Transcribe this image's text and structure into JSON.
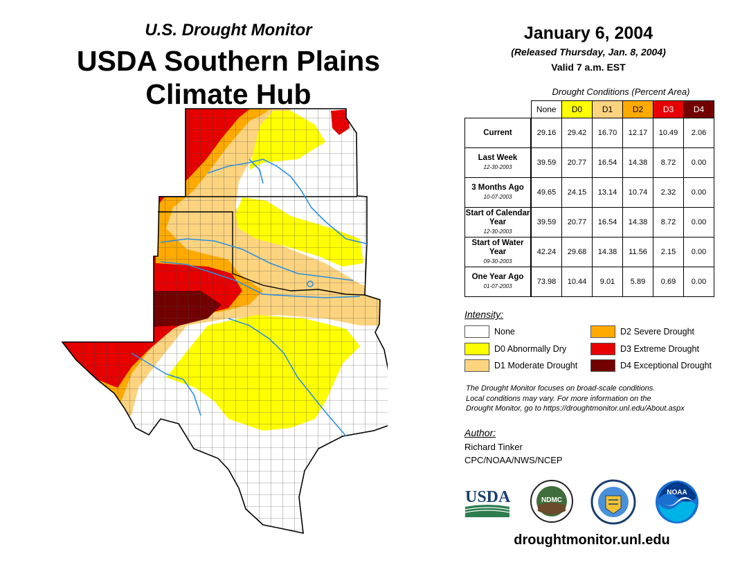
{
  "title": {
    "monitor": "U.S. Drought Monitor",
    "hub_line1": "USDA Southern Plains",
    "hub_line2": "Climate Hub"
  },
  "date": {
    "main": "January 6, 2004",
    "released": "(Released Thursday, Jan. 8, 2004)",
    "valid": "Valid 7 a.m. EST"
  },
  "table": {
    "caption": "Drought Conditions (Percent Area)",
    "columns": [
      "None",
      "D0",
      "D1",
      "D2",
      "D3",
      "D4"
    ],
    "column_colors": [
      "#ffffff",
      "#ffff00",
      "#fcd37f",
      "#ffaa00",
      "#e60000",
      "#730000"
    ],
    "rows": [
      {
        "label": "Current",
        "sub": "",
        "values": [
          "29.16",
          "29.42",
          "16.70",
          "12.17",
          "10.49",
          "2.06"
        ]
      },
      {
        "label": "Last Week",
        "sub": "12-30-2003",
        "values": [
          "39.59",
          "20.77",
          "16.54",
          "14.38",
          "8.72",
          "0.00"
        ]
      },
      {
        "label": "3 Months Ago",
        "sub": "10-07-2003",
        "values": [
          "49.65",
          "24.15",
          "13.14",
          "10.74",
          "2.32",
          "0.00"
        ]
      },
      {
        "label": "Start of Calendar Year",
        "sub": "12-30-2003",
        "values": [
          "39.59",
          "20.77",
          "16.54",
          "14.38",
          "8.72",
          "0.00"
        ]
      },
      {
        "label": "Start of Water Year",
        "sub": "09-30-2003",
        "values": [
          "42.24",
          "29.68",
          "14.38",
          "11.56",
          "2.15",
          "0.00"
        ]
      },
      {
        "label": "One Year Ago",
        "sub": "01-07-2003",
        "values": [
          "73.98",
          "10.44",
          "9.01",
          "5.89",
          "0.69",
          "0.00"
        ]
      }
    ]
  },
  "legend": {
    "title": "Intensity:",
    "items": [
      {
        "label": "None",
        "color": "#ffffff"
      },
      {
        "label": "D0 Abnormally Dry",
        "color": "#ffff00"
      },
      {
        "label": "D1 Moderate Drought",
        "color": "#fcd37f"
      },
      {
        "label": "D2 Severe Drought",
        "color": "#ffaa00"
      },
      {
        "label": "D3 Extreme Drought",
        "color": "#e60000"
      },
      {
        "label": "D4 Exceptional Drought",
        "color": "#730000"
      }
    ]
  },
  "note": {
    "line1": "The Drought Monitor focuses on broad-scale conditions.",
    "line2": "Local conditions may vary. For more information on the",
    "line3": "Drought Monitor, go to https://droughtmonitor.unl.edu/About.aspx"
  },
  "author": {
    "title": "Author:",
    "name": "Richard Tinker",
    "org": "CPC/NOAA/NWS/NCEP"
  },
  "logos": {
    "usda": "USDA",
    "ndmc": "NDMC",
    "noaa": "NOAA"
  },
  "footer_url": "droughtmonitor.unl.edu"
}
